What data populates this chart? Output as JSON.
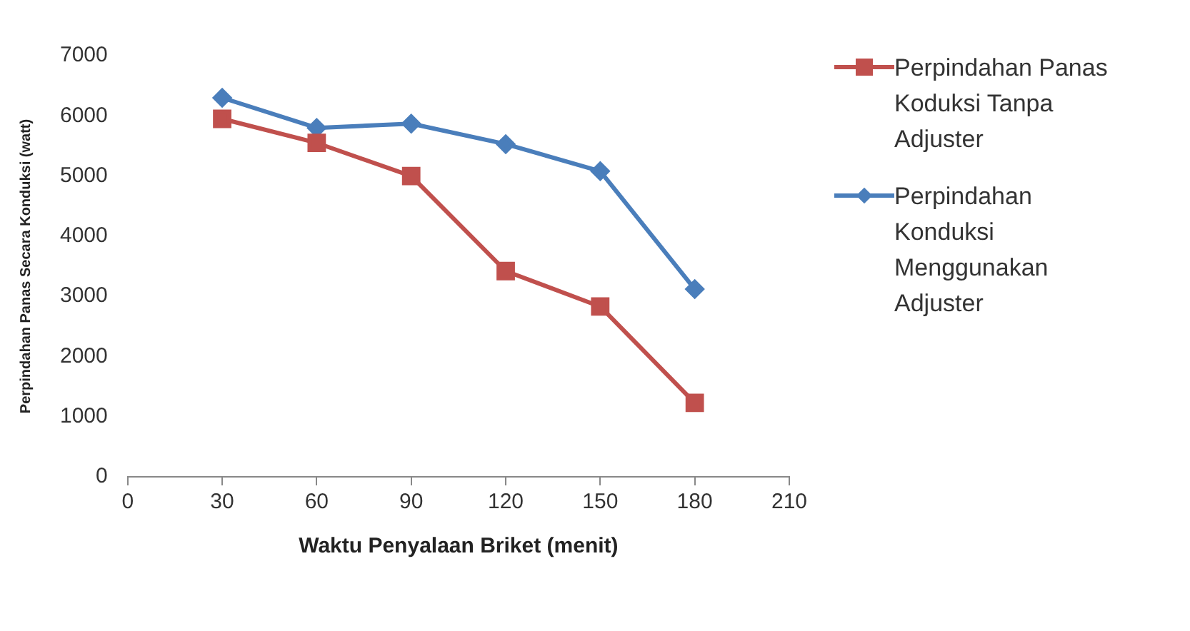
{
  "chart_data": {
    "type": "line",
    "xlabel": "Waktu Penyalaan Briket (menit)",
    "ylabel": "Perpindahan Panas Secara Konduksi (watt)",
    "x": [
      30,
      60,
      90,
      120,
      150,
      180
    ],
    "series": [
      {
        "name": "Perpindahan Panas Koduksi Tanpa Adjuster",
        "color": "#c0504d",
        "marker": "square",
        "values": [
          5950,
          5550,
          5000,
          3420,
          2830,
          1230
        ]
      },
      {
        "name": "Perpindahan Konduksi Menggunakan Adjuster",
        "color": "#4a7ebb",
        "marker": "diamond",
        "values": [
          6300,
          5800,
          5870,
          5530,
          5080,
          3120
        ]
      }
    ],
    "xlim": [
      0,
      210
    ],
    "xticks": [
      0,
      30,
      60,
      90,
      120,
      150,
      180,
      210
    ],
    "ylim": [
      0,
      7000
    ],
    "yticks": [
      0,
      1000,
      2000,
      3000,
      4000,
      5000,
      6000,
      7000
    ],
    "grid": false,
    "legend": "right"
  }
}
